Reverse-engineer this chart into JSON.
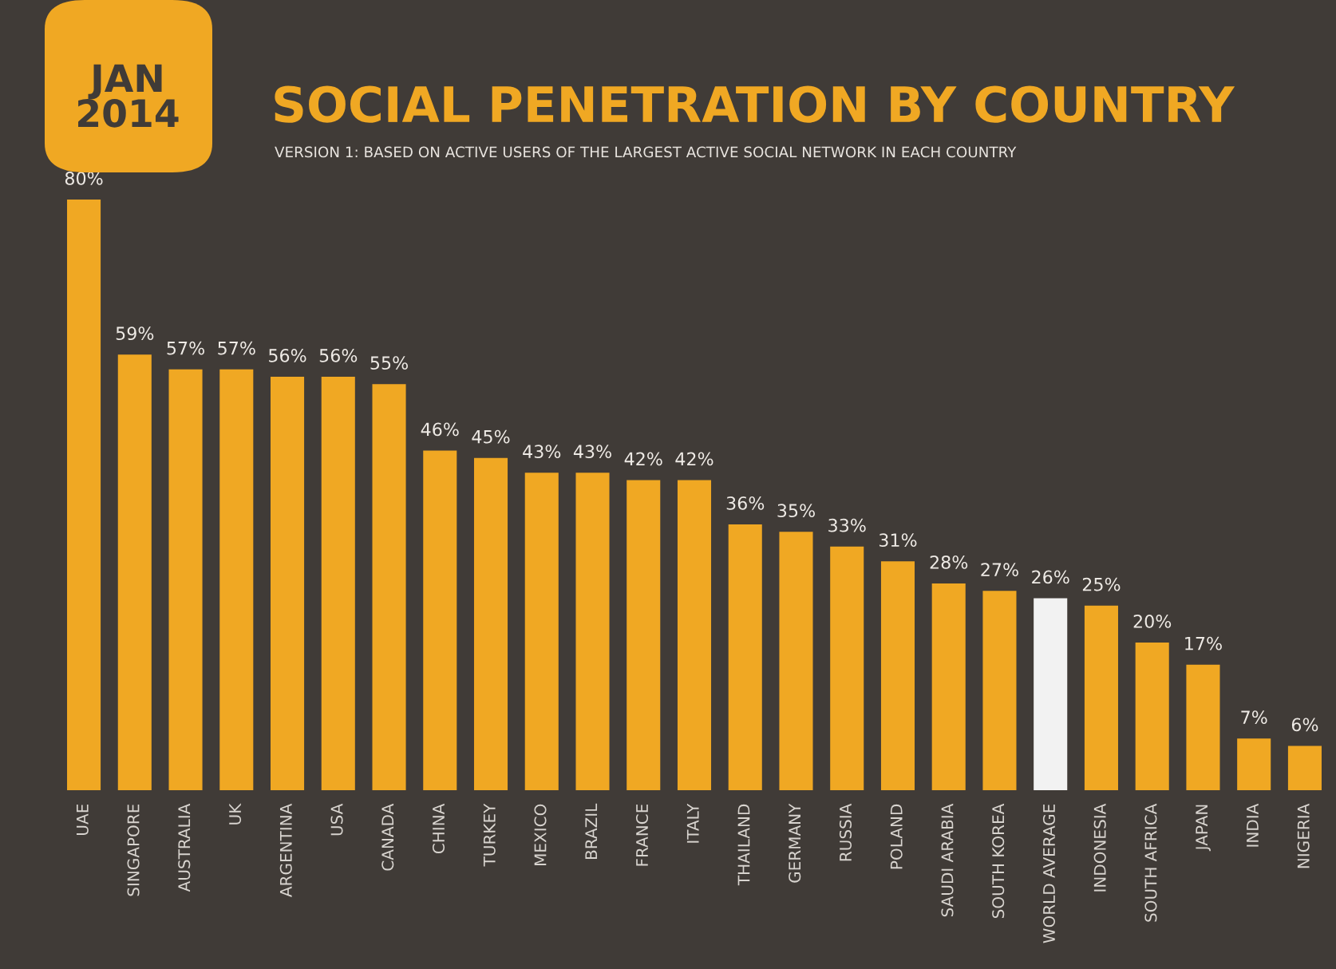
{
  "chart_data": {
    "type": "bar",
    "title": "SOCIAL PENETRATION BY COUNTRY",
    "subtitle": "VERSION 1: BASED ON ACTIVE USERS OF THE LARGEST ACTIVE SOCIAL NETWORK IN EACH COUNTRY",
    "annotations": [
      "JAN\n2014"
    ],
    "categories": [
      "UAE",
      "SINGAPORE",
      "AUSTRALIA",
      "UK",
      "ARGENTINA",
      "USA",
      "CANADA",
      "CHINA",
      "TURKEY",
      "MEXICO",
      "BRAZIL",
      "FRANCE",
      "ITALY",
      "THAILAND",
      "GERMANY",
      "RUSSIA",
      "POLAND",
      "SAUDI ARABIA",
      "SOUTH KOREA",
      "WORLD AVERAGE",
      "INDONESIA",
      "SOUTH AFRICA",
      "JAPAN",
      "INDIA",
      "NIGERIA"
    ],
    "values": [
      80,
      59,
      57,
      57,
      56,
      56,
      55,
      46,
      45,
      43,
      43,
      42,
      42,
      36,
      35,
      33,
      31,
      28,
      27,
      26,
      25,
      20,
      17,
      7,
      6
    ],
    "value_labels": [
      "80%",
      "59%",
      "57%",
      "57%",
      "56%",
      "56%",
      "55%",
      "46%",
      "45%",
      "43%",
      "43%",
      "42%",
      "42%",
      "36%",
      "35%",
      "33%",
      "31%",
      "28%",
      "27%",
      "26%",
      "25%",
      "20%",
      "17%",
      "7%",
      "6%"
    ],
    "colors": [
      "#f0a823",
      "#f0a823",
      "#f0a823",
      "#f0a823",
      "#f0a823",
      "#f0a823",
      "#f0a823",
      "#f0a823",
      "#f0a823",
      "#f0a823",
      "#f0a823",
      "#f0a823",
      "#f0a823",
      "#f0a823",
      "#f0a823",
      "#f0a823",
      "#f0a823",
      "#f0a823",
      "#f0a823",
      "#f2f2f2",
      "#f0a823",
      "#f0a823",
      "#f0a823",
      "#f0a823",
      "#f0a823"
    ],
    "grid": false,
    "legend": false,
    "tick_labels": "x"
  }
}
